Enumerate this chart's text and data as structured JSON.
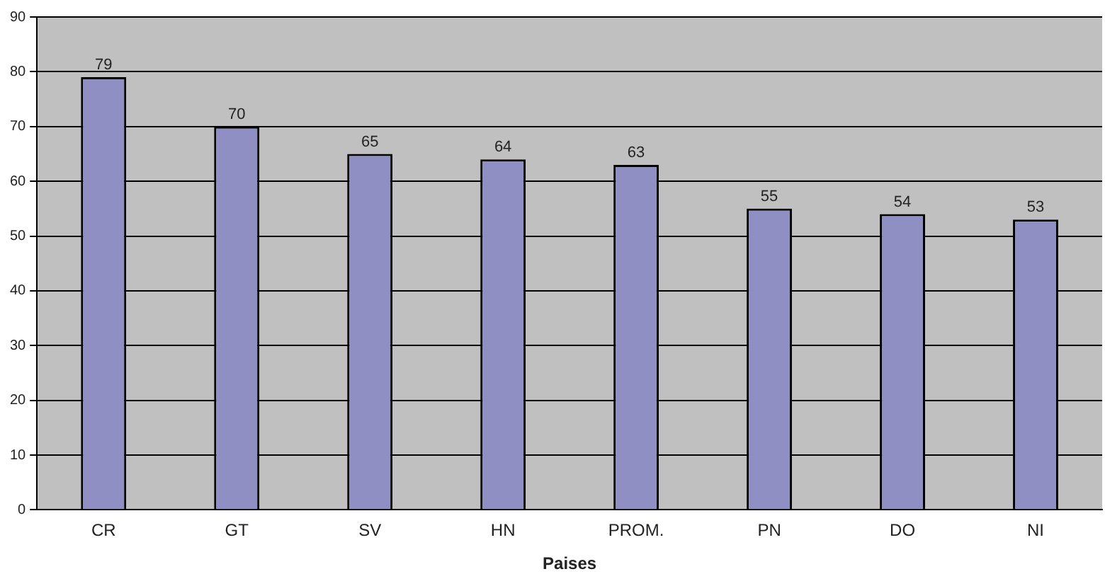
{
  "chart_data": {
    "type": "bar",
    "xlabel": "Paises",
    "categories": [
      "CR",
      "GT",
      "SV",
      "HN",
      "PROM.",
      "PN",
      "DO",
      "NI"
    ],
    "values": [
      79,
      70,
      65,
      64,
      63,
      55,
      54,
      53
    ],
    "color": "#8f8fc4",
    "ylim": [
      0,
      90
    ],
    "yticks": [
      0,
      10,
      20,
      30,
      40,
      50,
      60,
      70,
      80,
      90
    ],
    "grid": "y",
    "data_labels": true,
    "legend": false
  }
}
